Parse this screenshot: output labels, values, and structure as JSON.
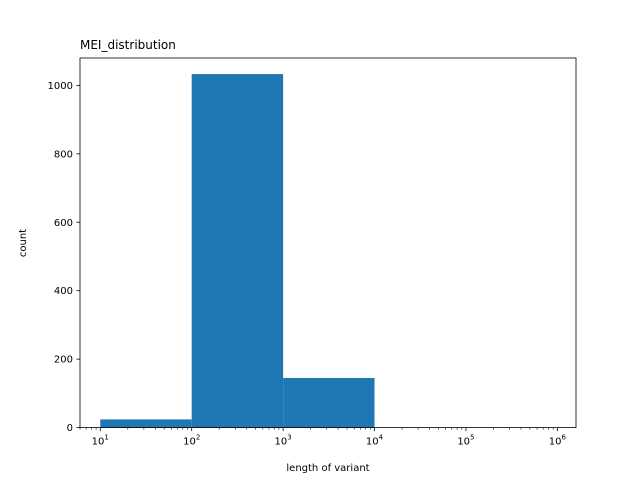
{
  "chart_data": {
    "type": "bar",
    "subtype": "histogram",
    "title": "MEI_distribution",
    "xlabel": "length of variant",
    "ylabel": "count",
    "xscale": "log",
    "xlim": [
      6,
      1600000
    ],
    "ylim": [
      0,
      1080
    ],
    "x_ticks": [
      10,
      100,
      1000,
      10000,
      100000,
      1000000
    ],
    "x_tick_labels": [
      {
        "base": "10",
        "exp": "1"
      },
      {
        "base": "10",
        "exp": "2"
      },
      {
        "base": "10",
        "exp": "3"
      },
      {
        "base": "10",
        "exp": "4"
      },
      {
        "base": "10",
        "exp": "5"
      },
      {
        "base": "10",
        "exp": "6"
      }
    ],
    "y_ticks": [
      0,
      200,
      400,
      600,
      800,
      1000
    ],
    "y_tick_labels": [
      "0",
      "200",
      "400",
      "600",
      "800",
      "1000"
    ],
    "bins": [
      {
        "x0": 10,
        "x1": 100,
        "value": 24
      },
      {
        "x0": 100,
        "x1": 1000,
        "value": 1033
      },
      {
        "x0": 1000,
        "x1": 10000,
        "value": 145
      },
      {
        "x0": 10000,
        "x1": 100000,
        "value": 0
      },
      {
        "x0": 100000,
        "x1": 1000000,
        "value": 0
      }
    ],
    "bar_color": "#1f77b4",
    "grid": false
  }
}
